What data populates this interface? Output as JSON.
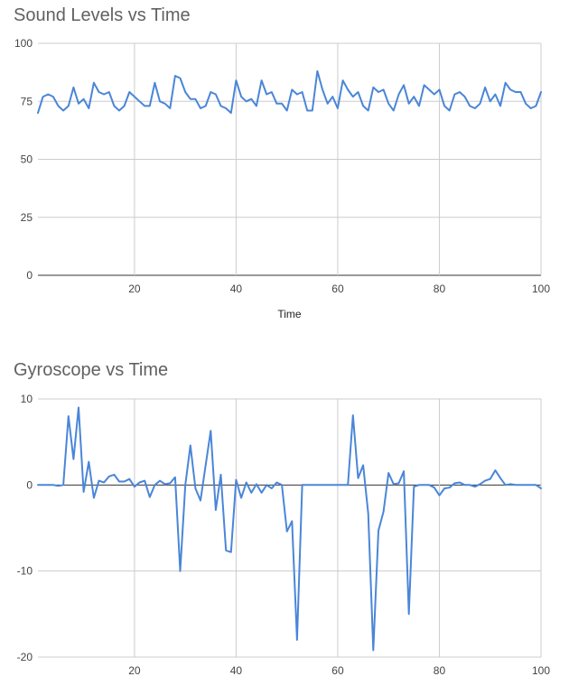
{
  "chart_data": [
    {
      "type": "line",
      "title": "Sound Levels vs Time",
      "xlabel": "Time",
      "ylabel": "",
      "xlim": [
        1,
        100
      ],
      "ylim": [
        0,
        100
      ],
      "x_ticks": [
        20,
        40,
        60,
        80,
        100
      ],
      "y_ticks": [
        0,
        25,
        50,
        75,
        100
      ],
      "grid": true,
      "color": "#4a86d8",
      "series": [
        {
          "x": [
            1,
            2,
            3,
            4,
            5,
            6,
            7,
            8,
            9,
            10,
            11,
            12,
            13,
            14,
            15,
            16,
            17,
            18,
            19,
            20,
            21,
            22,
            23,
            24,
            25,
            26,
            27,
            28,
            29,
            30,
            31,
            32,
            33,
            34,
            35,
            36,
            37,
            38,
            39,
            40,
            41,
            42,
            43,
            44,
            45,
            46,
            47,
            48,
            49,
            50,
            51,
            52,
            53,
            54,
            55,
            56,
            57,
            58,
            59,
            60,
            61,
            62,
            63,
            64,
            65,
            66,
            67,
            68,
            69,
            70,
            71,
            72,
            73,
            74,
            75,
            76,
            77,
            78,
            79,
            80,
            81,
            82,
            83,
            84,
            85,
            86,
            87,
            88,
            89,
            90,
            91,
            92,
            93,
            94,
            95,
            96,
            97,
            98,
            99,
            100
          ],
          "values": [
            70,
            77,
            78,
            77,
            73,
            71,
            73,
            81,
            74,
            76,
            72,
            83,
            79,
            78,
            79,
            73,
            71,
            73,
            79,
            77,
            75,
            73,
            73,
            83,
            75,
            74,
            72,
            86,
            85,
            79,
            76,
            76,
            72,
            73,
            79,
            78,
            73,
            72,
            70,
            84,
            77,
            75,
            76,
            73,
            84,
            78,
            79,
            74,
            74,
            71,
            80,
            78,
            79,
            71,
            71,
            88,
            80,
            74,
            77,
            72,
            84,
            80,
            77,
            79,
            73,
            71,
            81,
            79,
            80,
            74,
            71,
            78,
            82,
            74,
            77,
            73,
            82,
            80,
            78,
            80,
            73,
            71,
            78,
            79,
            77,
            73,
            72,
            74,
            81,
            75,
            78,
            73,
            83,
            80,
            79,
            79,
            74,
            72,
            73,
            79
          ]
        }
      ]
    },
    {
      "type": "line",
      "title": "Gyroscope vs Time",
      "xlabel": "",
      "ylabel": "",
      "xlim": [
        1,
        100
      ],
      "ylim": [
        -20,
        10
      ],
      "x_ticks": [
        20,
        40,
        60,
        80,
        100
      ],
      "y_ticks": [
        -20,
        -10,
        0,
        10
      ],
      "grid": true,
      "color": "#4a86d8",
      "series": [
        {
          "x": [
            1,
            2,
            3,
            4,
            5,
            6,
            7,
            8,
            9,
            10,
            11,
            12,
            13,
            14,
            15,
            16,
            17,
            18,
            19,
            20,
            21,
            22,
            23,
            24,
            25,
            26,
            27,
            28,
            29,
            30,
            31,
            32,
            33,
            34,
            35,
            36,
            37,
            38,
            39,
            40,
            41,
            42,
            43,
            44,
            45,
            46,
            47,
            48,
            49,
            50,
            51,
            52,
            53,
            54,
            55,
            56,
            57,
            58,
            59,
            60,
            61,
            62,
            63,
            64,
            65,
            66,
            67,
            68,
            69,
            70,
            71,
            72,
            73,
            74,
            75,
            76,
            77,
            78,
            79,
            80,
            81,
            82,
            83,
            84,
            85,
            86,
            87,
            88,
            89,
            90,
            91,
            92,
            93,
            94,
            95,
            96,
            97,
            98,
            99,
            100
          ],
          "values": [
            0,
            0,
            0,
            0,
            -0.1,
            0,
            8,
            3,
            9,
            -0.8,
            2.7,
            -1.5,
            0.5,
            0.3,
            1,
            1.2,
            0.4,
            0.4,
            0.7,
            -0.2,
            0.3,
            0.5,
            -1.4,
            0,
            0.5,
            0.1,
            0.2,
            0.9,
            -10,
            0,
            4.6,
            -0.4,
            -1.8,
            2.3,
            6.3,
            -2.9,
            1.2,
            -7.6,
            -7.8,
            0.6,
            -1.5,
            0.3,
            -0.9,
            0.1,
            -0.9,
            0,
            -0.4,
            0.3,
            0,
            -5.4,
            -4.2,
            -18,
            0,
            0,
            0,
            0,
            0,
            0,
            0,
            0,
            0,
            0,
            8.1,
            0.8,
            2.3,
            -3.3,
            -19.2,
            -5.3,
            -3.1,
            1.4,
            0.1,
            0.2,
            1.6,
            -15,
            -0.2,
            0,
            0,
            0,
            -0.3,
            -1.2,
            -0.4,
            -0.3,
            0.2,
            0.3,
            0,
            0,
            -0.2,
            0.1,
            0.5,
            0.7,
            1.7,
            0.8,
            0,
            0.1,
            0,
            0,
            0,
            0,
            0,
            -0.4
          ]
        }
      ]
    }
  ]
}
